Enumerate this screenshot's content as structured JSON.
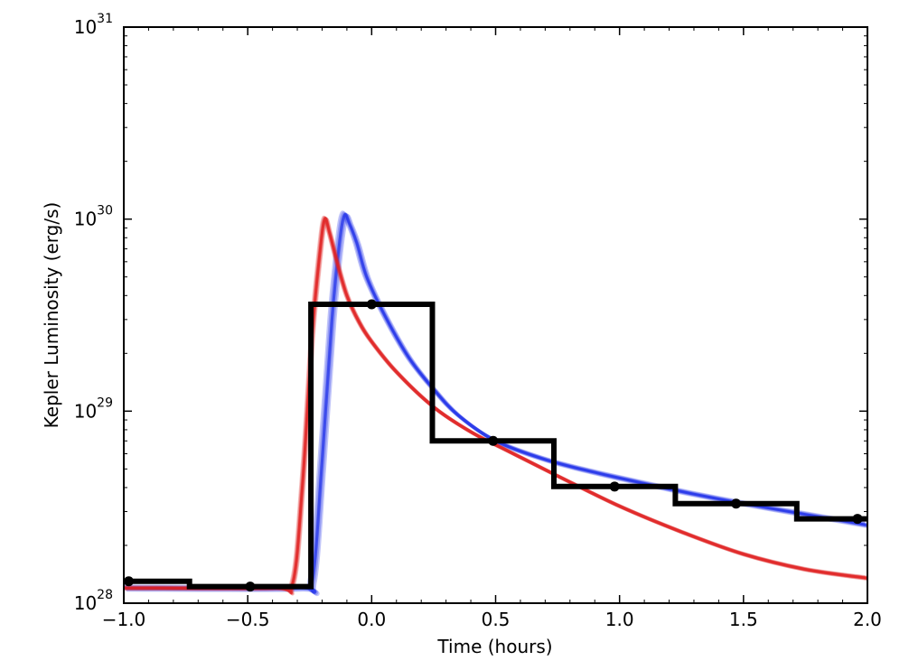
{
  "chart_data": {
    "type": "line",
    "title": "",
    "xlabel": "Time (hours)",
    "ylabel": "Kepler Luminosity (erg/s)",
    "xlim": [
      -1.0,
      2.0
    ],
    "ylim": [
      1e+28,
      1e+31
    ],
    "yscale": "log",
    "x_ticks": [
      -1.0,
      -0.5,
      0.0,
      0.5,
      1.0,
      1.5,
      2.0
    ],
    "x_tick_labels": [
      "−1.0",
      "−0.5",
      "0.0",
      "0.5",
      "1.0",
      "1.5",
      "2.0"
    ],
    "y_ticks": [
      {
        "value": 1e+28,
        "base": "10",
        "exp": "28"
      },
      {
        "value": 1e+29,
        "base": "10",
        "exp": "29"
      },
      {
        "value": 1e+30,
        "base": "10",
        "exp": "30"
      },
      {
        "value": 1e+31,
        "base": "10",
        "exp": "31"
      }
    ],
    "colors": {
      "binned": "#000000",
      "red_model": "#e02020",
      "blue_model": "#2030e8"
    },
    "series": [
      {
        "name": "binned_observation",
        "style": "step",
        "bin_edges": [
          -1.0,
          -0.735,
          -0.245,
          0.245,
          0.735,
          1.225,
          1.715,
          2.0
        ],
        "bin_values": [
          1.3e+28,
          1.22e+28,
          3.6e+29,
          7e+28,
          4.05e+28,
          3.3e+28,
          2.75e+28
        ],
        "points_x": [
          -0.98,
          -0.49,
          0.0,
          0.49,
          0.98,
          1.47,
          1.96
        ],
        "points_y": [
          1.3e+28,
          1.22e+28,
          3.6e+29,
          7e+28,
          4.05e+28,
          3.3e+28,
          2.75e+28
        ]
      },
      {
        "name": "red_model_samples",
        "style": "line",
        "x": [
          -1.0,
          -0.4,
          -0.32,
          -0.28,
          -0.24,
          -0.21,
          -0.19,
          -0.17,
          -0.14,
          -0.1,
          -0.05,
          0.0,
          0.1,
          0.25,
          0.4,
          0.55,
          0.75,
          1.0,
          1.25,
          1.5,
          1.75,
          2.0
        ],
        "y": [
          1.2e+28,
          1.2e+28,
          1.25e+28,
          4e+28,
          2.5e+29,
          6.5e+29,
          1e+30,
          8.5e+29,
          6e+29,
          4e+29,
          2.9e+29,
          2.3e+29,
          1.6e+29,
          1.05e+29,
          7.8e+28,
          6.2e+28,
          4.6e+28,
          3.2e+28,
          2.35e+28,
          1.8e+28,
          1.5e+28,
          1.35e+28
        ]
      },
      {
        "name": "blue_model_samples",
        "style": "line",
        "x": [
          -1.0,
          -0.3,
          -0.24,
          -0.2,
          -0.16,
          -0.13,
          -0.11,
          -0.09,
          -0.06,
          -0.02,
          0.05,
          0.15,
          0.25,
          0.35,
          0.5,
          0.7,
          0.9,
          1.1,
          1.3,
          1.5,
          1.75,
          2.0
        ],
        "y": [
          1.2e+28,
          1.2e+28,
          1.3e+28,
          5.5e+28,
          3e+29,
          7.5e+29,
          1.05e+30,
          9.5e+29,
          7.5e+29,
          5e+29,
          3.2e+29,
          1.9e+29,
          1.3e+29,
          9.5e+28,
          7e+28,
          5.6e+28,
          4.8e+28,
          4.2e+28,
          3.7e+28,
          3.3e+28,
          2.9e+28,
          2.55e+28
        ]
      }
    ]
  }
}
